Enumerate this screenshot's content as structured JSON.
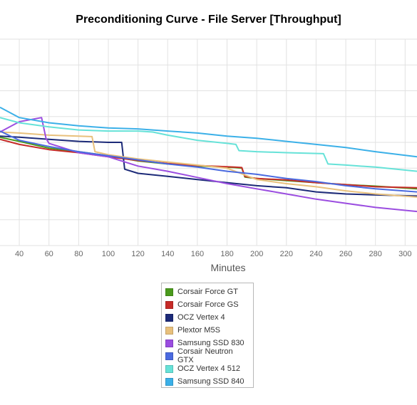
{
  "chart_data": {
    "type": "line",
    "title": "Preconditioning Curve - File Server [Throughput]",
    "xlabel": "Minutes",
    "ylabel": "",
    "x_ticks": [
      40,
      60,
      80,
      100,
      120,
      140,
      160,
      180,
      200,
      220,
      240,
      260,
      280,
      300
    ],
    "x_range": [
      27,
      308
    ],
    "y_range": [
      0,
      10
    ],
    "grid": true,
    "legend_position": "bottom",
    "series": [
      {
        "name": "Corsair Force GT",
        "color": "#4a9a1c",
        "points": [
          [
            27,
            5.25
          ],
          [
            40,
            5.05
          ],
          [
            60,
            4.72
          ],
          [
            80,
            4.55
          ],
          [
            100,
            4.35
          ],
          [
            120,
            4.1
          ],
          [
            140,
            3.95
          ],
          [
            160,
            3.85
          ],
          [
            185,
            3.78
          ],
          [
            190,
            3.75
          ],
          [
            192,
            3.32
          ],
          [
            200,
            3.25
          ],
          [
            220,
            3.15
          ],
          [
            240,
            3.05
          ],
          [
            260,
            2.95
          ],
          [
            280,
            2.88
          ],
          [
            308,
            2.75
          ]
        ]
      },
      {
        "name": "Corsair Force GS",
        "color": "#c62b28",
        "points": [
          [
            27,
            5.15
          ],
          [
            40,
            4.9
          ],
          [
            60,
            4.65
          ],
          [
            80,
            4.5
          ],
          [
            100,
            4.3
          ],
          [
            120,
            4.12
          ],
          [
            140,
            3.98
          ],
          [
            160,
            3.88
          ],
          [
            185,
            3.8
          ],
          [
            190,
            3.78
          ],
          [
            192,
            3.35
          ],
          [
            200,
            3.25
          ],
          [
            220,
            3.18
          ],
          [
            240,
            3.05
          ],
          [
            260,
            2.95
          ],
          [
            280,
            2.85
          ],
          [
            308,
            2.8
          ]
        ]
      },
      {
        "name": "OCZ Vertex 4",
        "color": "#1c2a78",
        "points": [
          [
            27,
            5.3
          ],
          [
            40,
            5.25
          ],
          [
            60,
            5.15
          ],
          [
            80,
            5.05
          ],
          [
            100,
            5.0
          ],
          [
            109,
            5.0
          ],
          [
            111,
            3.7
          ],
          [
            120,
            3.5
          ],
          [
            140,
            3.35
          ],
          [
            160,
            3.2
          ],
          [
            180,
            3.05
          ],
          [
            200,
            2.9
          ],
          [
            220,
            2.8
          ],
          [
            240,
            2.6
          ],
          [
            260,
            2.5
          ],
          [
            280,
            2.45
          ],
          [
            308,
            2.4
          ]
        ]
      },
      {
        "name": "Plextor M5S",
        "color": "#e8c07c",
        "points": [
          [
            27,
            5.5
          ],
          [
            40,
            5.45
          ],
          [
            60,
            5.35
          ],
          [
            80,
            5.3
          ],
          [
            89,
            5.28
          ],
          [
            91,
            4.55
          ],
          [
            100,
            4.4
          ],
          [
            120,
            4.2
          ],
          [
            140,
            4.05
          ],
          [
            160,
            3.9
          ],
          [
            180,
            3.75
          ],
          [
            200,
            3.2
          ],
          [
            220,
            3.0
          ],
          [
            240,
            2.85
          ],
          [
            260,
            2.65
          ],
          [
            280,
            2.5
          ],
          [
            308,
            2.35
          ]
        ]
      },
      {
        "name": "Samsung SSD 830",
        "color": "#9b4de0",
        "points": [
          [
            27,
            5.5
          ],
          [
            40,
            6.0
          ],
          [
            55,
            6.2
          ],
          [
            58,
            5.2
          ],
          [
            60,
            4.95
          ],
          [
            80,
            4.5
          ],
          [
            100,
            4.3
          ],
          [
            120,
            3.85
          ],
          [
            140,
            3.6
          ],
          [
            160,
            3.3
          ],
          [
            180,
            3.0
          ],
          [
            200,
            2.75
          ],
          [
            220,
            2.5
          ],
          [
            240,
            2.25
          ],
          [
            260,
            2.05
          ],
          [
            280,
            1.85
          ],
          [
            308,
            1.65
          ]
        ]
      },
      {
        "name": "Corsair Neutron GTX",
        "color": "#4a6ae0",
        "points": [
          [
            27,
            5.55
          ],
          [
            40,
            5.1
          ],
          [
            60,
            4.8
          ],
          [
            80,
            4.55
          ],
          [
            100,
            4.35
          ],
          [
            120,
            4.15
          ],
          [
            140,
            3.95
          ],
          [
            160,
            3.8
          ],
          [
            180,
            3.6
          ],
          [
            200,
            3.45
          ],
          [
            220,
            3.25
          ],
          [
            240,
            3.1
          ],
          [
            260,
            2.9
          ],
          [
            280,
            2.75
          ],
          [
            308,
            2.6
          ]
        ]
      },
      {
        "name": "OCZ Vertex 4 512",
        "color": "#66e2d8",
        "points": [
          [
            27,
            6.2
          ],
          [
            40,
            5.95
          ],
          [
            60,
            5.75
          ],
          [
            80,
            5.6
          ],
          [
            100,
            5.55
          ],
          [
            120,
            5.55
          ],
          [
            130,
            5.5
          ],
          [
            140,
            5.35
          ],
          [
            160,
            5.1
          ],
          [
            180,
            4.95
          ],
          [
            186,
            4.9
          ],
          [
            188,
            4.6
          ],
          [
            200,
            4.55
          ],
          [
            220,
            4.5
          ],
          [
            245,
            4.45
          ],
          [
            248,
            3.95
          ],
          [
            260,
            3.9
          ],
          [
            280,
            3.8
          ],
          [
            308,
            3.6
          ]
        ]
      },
      {
        "name": "Samsung SSD 840",
        "color": "#3bb0e8",
        "points": [
          [
            27,
            6.7
          ],
          [
            40,
            6.2
          ],
          [
            60,
            5.95
          ],
          [
            80,
            5.8
          ],
          [
            100,
            5.7
          ],
          [
            120,
            5.65
          ],
          [
            140,
            5.55
          ],
          [
            160,
            5.45
          ],
          [
            180,
            5.3
          ],
          [
            200,
            5.2
          ],
          [
            220,
            5.05
          ],
          [
            240,
            4.9
          ],
          [
            260,
            4.75
          ],
          [
            280,
            4.55
          ],
          [
            308,
            4.3
          ]
        ]
      }
    ]
  }
}
